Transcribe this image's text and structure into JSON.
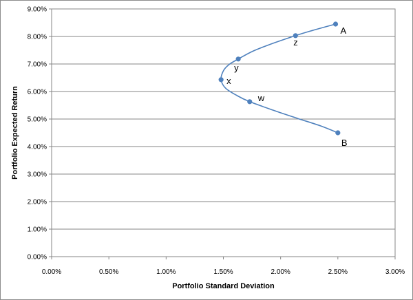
{
  "chart_data": {
    "type": "scatter",
    "title": "",
    "xlabel": "Portfolio Standard Deviation",
    "ylabel": "Portfolio Expected Return",
    "xlim": [
      0,
      0.03
    ],
    "ylim": [
      0,
      0.09
    ],
    "x_ticks": [
      "0.00%",
      "0.50%",
      "1.00%",
      "1.50%",
      "2.00%",
      "2.50%",
      "3.00%"
    ],
    "y_ticks": [
      "0.00%",
      "1.00%",
      "2.00%",
      "3.00%",
      "4.00%",
      "5.00%",
      "6.00%",
      "7.00%",
      "8.00%",
      "9.00%"
    ],
    "grid": "horizontal",
    "legend": "none",
    "series_color": "#4f81bd",
    "curve": [
      {
        "x": 0.0248,
        "y": 0.0845
      },
      {
        "x": 0.0228,
        "y": 0.0822
      },
      {
        "x": 0.0213,
        "y": 0.0803
      },
      {
        "x": 0.019,
        "y": 0.077
      },
      {
        "x": 0.0175,
        "y": 0.0745
      },
      {
        "x": 0.0163,
        "y": 0.0718
      },
      {
        "x": 0.0155,
        "y": 0.0698
      },
      {
        "x": 0.015,
        "y": 0.0675
      },
      {
        "x": 0.0148,
        "y": 0.0643
      },
      {
        "x": 0.0152,
        "y": 0.0612
      },
      {
        "x": 0.0162,
        "y": 0.0585
      },
      {
        "x": 0.0173,
        "y": 0.0563
      },
      {
        "x": 0.0195,
        "y": 0.053
      },
      {
        "x": 0.0215,
        "y": 0.0502
      },
      {
        "x": 0.0235,
        "y": 0.0475
      },
      {
        "x": 0.025,
        "y": 0.045
      }
    ],
    "points": [
      {
        "label": "A",
        "x": 0.0248,
        "y": 0.0845
      },
      {
        "label": "z",
        "x": 0.0213,
        "y": 0.0803
      },
      {
        "label": "y",
        "x": 0.0163,
        "y": 0.0718
      },
      {
        "label": "x",
        "x": 0.0148,
        "y": 0.0643
      },
      {
        "label": "w",
        "x": 0.0173,
        "y": 0.0563
      },
      {
        "label": "B",
        "x": 0.025,
        "y": 0.045
      }
    ]
  }
}
